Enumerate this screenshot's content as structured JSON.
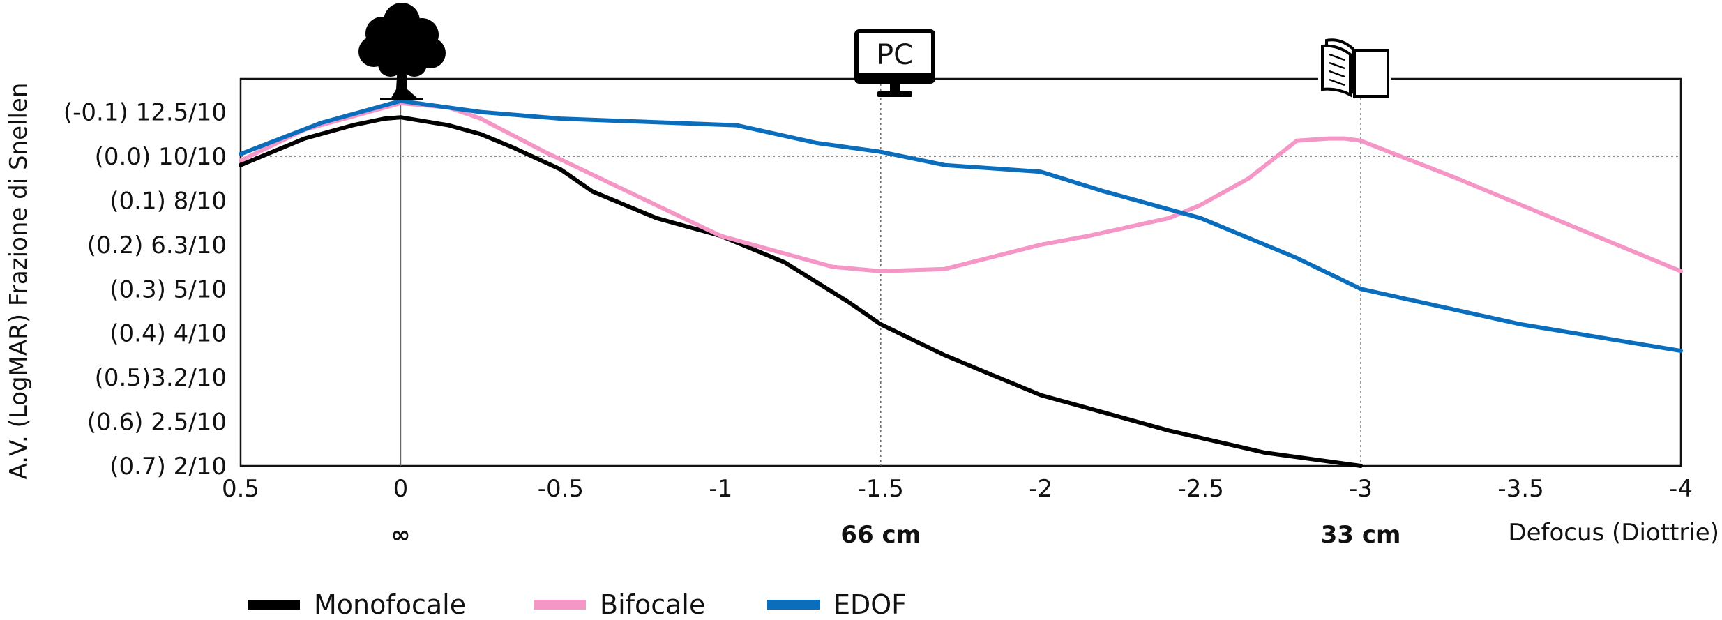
{
  "chart_data": {
    "type": "line",
    "xlabel": "Defocus (Diottrie)",
    "ylabel": "A.V. (LogMAR) Frazione di Snellen",
    "xlim": [
      0.5,
      -4
    ],
    "ylim": [
      0.7,
      -0.175
    ],
    "x_ticks": [
      {
        "value": 0.5,
        "label": "0.5"
      },
      {
        "value": 0,
        "label": "0"
      },
      {
        "value": -0.5,
        "label": "-0.5"
      },
      {
        "value": -1,
        "label": "-1"
      },
      {
        "value": -1.5,
        "label": "-1.5"
      },
      {
        "value": -2,
        "label": "-2"
      },
      {
        "value": -2.5,
        "label": "-2.5"
      },
      {
        "value": -3,
        "label": "-3"
      },
      {
        "value": -3.5,
        "label": "-3.5"
      },
      {
        "value": -4,
        "label": "-4"
      }
    ],
    "y_ticks": [
      {
        "value": -0.1,
        "label": "(-0.1) 12.5/10"
      },
      {
        "value": 0.0,
        "label": "(0.0) 10/10"
      },
      {
        "value": 0.1,
        "label": "(0.1) 8/10"
      },
      {
        "value": 0.2,
        "label": "(0.2) 6.3/10"
      },
      {
        "value": 0.3,
        "label": "(0.3) 5/10"
      },
      {
        "value": 0.4,
        "label": "(0.4) 4/10"
      },
      {
        "value": 0.5,
        "label": "(0.5)3.2/10"
      },
      {
        "value": 0.6,
        "label": "(0.6) 2.5/10"
      },
      {
        "value": 0.7,
        "label": "(0.7) 2/10"
      }
    ],
    "distance_labels": [
      {
        "x": 0,
        "label": "∞"
      },
      {
        "x": -1.5,
        "label": "66 cm"
      },
      {
        "x": -3,
        "label": "33 cm"
      }
    ],
    "icons": [
      {
        "x": 0,
        "name": "tree-icon",
        "label": ""
      },
      {
        "x": -1.5,
        "name": "monitor-icon",
        "label": "PC"
      },
      {
        "x": -3,
        "name": "book-icon",
        "label": ""
      }
    ],
    "grid": {
      "vertical_at": [
        0,
        -1.5,
        -3
      ],
      "horizontal_at": [
        0.0
      ]
    },
    "legend_position": "bottom-left",
    "series": [
      {
        "name": "Monofocale",
        "color": "#000000",
        "points": [
          [
            0.5,
            0.02
          ],
          [
            0.3,
            -0.04
          ],
          [
            0.15,
            -0.07
          ],
          [
            0.05,
            -0.085
          ],
          [
            0,
            -0.088
          ],
          [
            -0.15,
            -0.07
          ],
          [
            -0.25,
            -0.05
          ],
          [
            -0.35,
            -0.02
          ],
          [
            -0.5,
            0.03
          ],
          [
            -0.6,
            0.08
          ],
          [
            -0.8,
            0.14
          ],
          [
            -1,
            0.18
          ],
          [
            -1.2,
            0.24
          ],
          [
            -1.4,
            0.33
          ],
          [
            -1.5,
            0.38
          ],
          [
            -1.7,
            0.45
          ],
          [
            -2,
            0.54
          ],
          [
            -2.4,
            0.62
          ],
          [
            -2.7,
            0.67
          ],
          [
            -3,
            0.7
          ]
        ]
      },
      {
        "name": "Bifocale",
        "color": "#f597c6",
        "points": [
          [
            0.5,
            0.01
          ],
          [
            0.3,
            -0.06
          ],
          [
            0.15,
            -0.09
          ],
          [
            0,
            -0.12
          ],
          [
            -0.15,
            -0.11
          ],
          [
            -0.25,
            -0.085
          ],
          [
            -0.45,
            -0.01
          ],
          [
            -1,
            0.18
          ],
          [
            -1.35,
            0.25
          ],
          [
            -1.5,
            0.26
          ],
          [
            -1.7,
            0.255
          ],
          [
            -2,
            0.2
          ],
          [
            -2.15,
            0.18
          ],
          [
            -2.4,
            0.14
          ],
          [
            -2.5,
            0.11
          ],
          [
            -2.65,
            0.05
          ],
          [
            -2.8,
            -0.035
          ],
          [
            -2.9,
            -0.04
          ],
          [
            -2.95,
            -0.04
          ],
          [
            -3,
            -0.035
          ],
          [
            -3.3,
            0.05
          ],
          [
            -4,
            0.26
          ]
        ]
      },
      {
        "name": "EDOF",
        "color": "#0a6ebd",
        "points": [
          [
            0.5,
            -0.005
          ],
          [
            0.25,
            -0.075
          ],
          [
            0,
            -0.125
          ],
          [
            -0.25,
            -0.1
          ],
          [
            -0.5,
            -0.085
          ],
          [
            -1.05,
            -0.07
          ],
          [
            -1.3,
            -0.03
          ],
          [
            -1.5,
            -0.01
          ],
          [
            -1.7,
            0.02
          ],
          [
            -2,
            0.035
          ],
          [
            -2.2,
            0.08
          ],
          [
            -2.5,
            0.14
          ],
          [
            -2.8,
            0.23
          ],
          [
            -3,
            0.3
          ],
          [
            -3.5,
            0.38
          ],
          [
            -4,
            0.44
          ]
        ]
      }
    ]
  }
}
